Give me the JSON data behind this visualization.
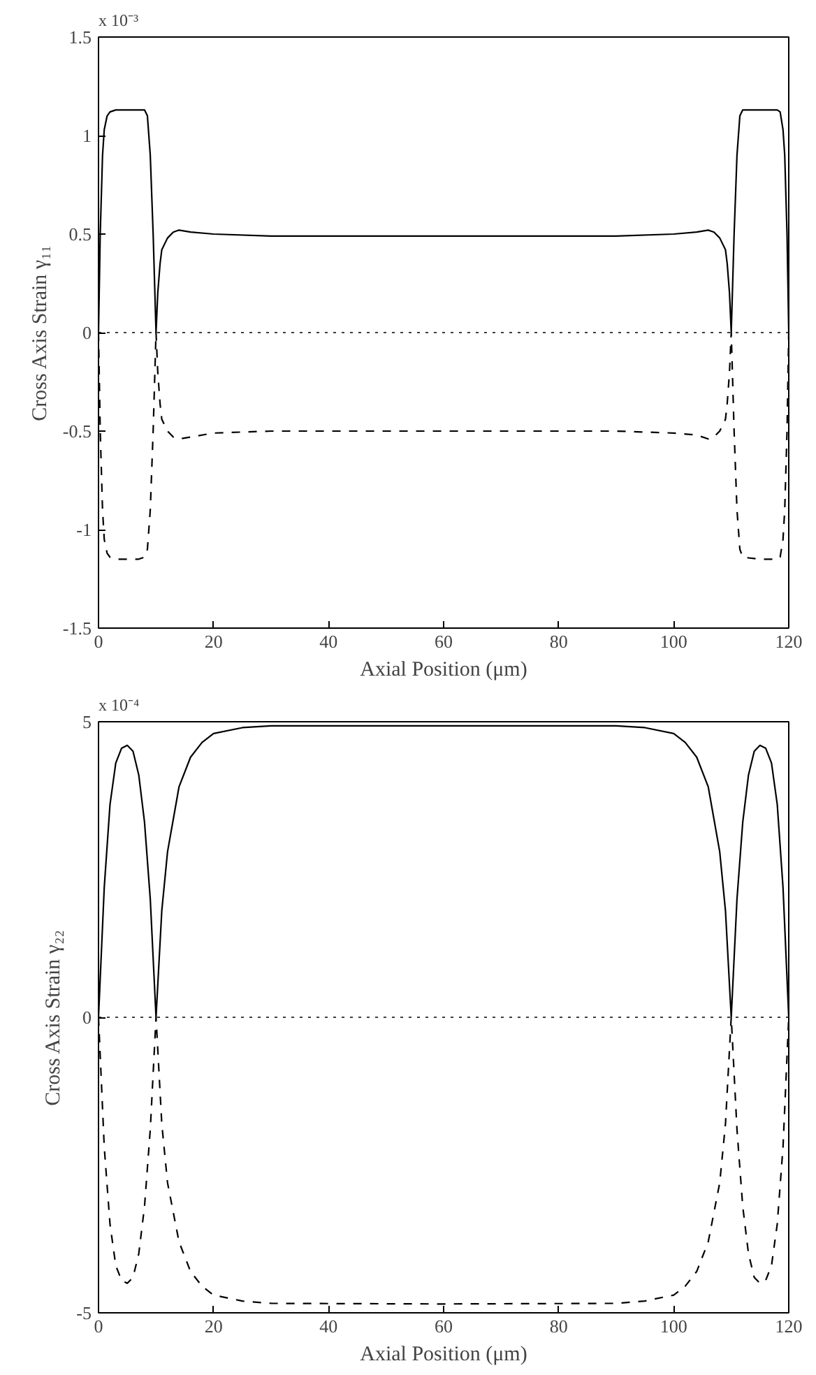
{
  "chart_data": [
    {
      "type": "line",
      "xlabel": "Axial Position (μm)",
      "ylabel": "Cross Axis Strain γ₁₁",
      "annotations": [
        "x 10⁻³"
      ],
      "xlim": [
        0,
        120
      ],
      "ylim": [
        -1.5,
        1.5
      ],
      "xticks": [
        0,
        20,
        40,
        60,
        80,
        100,
        120
      ],
      "yticks": [
        -1.5,
        -1,
        -0.5,
        0,
        0.5,
        1,
        1.5
      ],
      "grid": false,
      "ref_lines": [
        {
          "axis": "y",
          "value": 0,
          "color": "#000000",
          "line_style": "dotted"
        }
      ],
      "series": [
        {
          "color": "#000000",
          "line_style": "solid",
          "x": [
            0,
            0.3,
            0.7,
            1,
            1.5,
            2,
            3,
            5,
            7,
            8,
            8.5,
            9,
            9.5,
            10,
            10.3,
            10.7,
            11,
            12,
            13,
            14,
            16,
            20,
            30,
            60,
            90,
            100,
            104,
            106,
            107,
            108,
            109,
            109.3,
            109.7,
            110,
            110.5,
            111,
            111.5,
            112,
            115,
            118,
            118.5,
            119,
            119.3,
            119.7,
            120
          ],
          "values": [
            0,
            0.5,
            0.9,
            1.03,
            1.1,
            1.12,
            1.13,
            1.13,
            1.13,
            1.13,
            1.1,
            0.9,
            0.5,
            0,
            0.2,
            0.35,
            0.42,
            0.48,
            0.51,
            0.52,
            0.51,
            0.5,
            0.49,
            0.49,
            0.49,
            0.5,
            0.51,
            0.52,
            0.51,
            0.48,
            0.42,
            0.35,
            0.2,
            0,
            0.5,
            0.9,
            1.1,
            1.13,
            1.13,
            1.13,
            1.12,
            1.03,
            0.9,
            0.5,
            0
          ]
        },
        {
          "color": "#000000",
          "line_style": "dashed",
          "x": [
            0,
            0.3,
            0.7,
            1,
            1.5,
            2,
            3,
            5,
            7,
            8,
            8.5,
            9,
            9.5,
            10,
            10.3,
            10.7,
            11,
            12,
            13,
            14,
            16,
            20,
            30,
            60,
            90,
            100,
            104,
            106,
            107,
            108,
            109,
            109.3,
            109.7,
            110,
            110.5,
            111,
            111.5,
            112,
            115,
            118,
            118.5,
            119,
            119.3,
            119.7,
            120
          ],
          "values": [
            0,
            -0.5,
            -0.9,
            -1.05,
            -1.12,
            -1.14,
            -1.15,
            -1.15,
            -1.15,
            -1.14,
            -1.1,
            -0.9,
            -0.5,
            0,
            -0.2,
            -0.36,
            -0.44,
            -0.5,
            -0.53,
            -0.54,
            -0.53,
            -0.51,
            -0.5,
            -0.5,
            -0.5,
            -0.51,
            -0.52,
            -0.54,
            -0.53,
            -0.5,
            -0.44,
            -0.36,
            -0.2,
            0,
            -0.5,
            -0.9,
            -1.1,
            -1.14,
            -1.15,
            -1.15,
            -1.14,
            -1.05,
            -0.9,
            -0.5,
            0
          ]
        }
      ]
    },
    {
      "type": "line",
      "xlabel": "Axial Position (μm)",
      "ylabel": "Cross Axis Strain γ₂₂",
      "annotations": [
        "x 10⁻⁴"
      ],
      "xlim": [
        0,
        120
      ],
      "ylim": [
        -5,
        5
      ],
      "xticks": [
        0,
        20,
        40,
        60,
        80,
        100,
        120
      ],
      "yticks": [
        -5,
        0,
        5
      ],
      "grid": false,
      "ref_lines": [
        {
          "axis": "y",
          "value": 0,
          "color": "#000000",
          "line_style": "dotted"
        }
      ],
      "series": [
        {
          "color": "#000000",
          "line_style": "solid",
          "x": [
            0,
            1,
            2,
            3,
            4,
            5,
            6,
            7,
            8,
            9,
            10,
            11,
            12,
            14,
            16,
            18,
            20,
            25,
            30,
            60,
            90,
            95,
            100,
            102,
            104,
            106,
            108,
            109,
            110,
            111,
            112,
            113,
            114,
            115,
            116,
            117,
            118,
            119,
            120
          ],
          "values": [
            0,
            2.2,
            3.6,
            4.3,
            4.55,
            4.6,
            4.5,
            4.1,
            3.3,
            2,
            0,
            1.8,
            2.8,
            3.9,
            4.4,
            4.65,
            4.8,
            4.9,
            4.93,
            4.93,
            4.93,
            4.9,
            4.8,
            4.65,
            4.4,
            3.9,
            2.8,
            1.8,
            0,
            2,
            3.3,
            4.1,
            4.5,
            4.6,
            4.55,
            4.3,
            3.6,
            2.2,
            0
          ]
        },
        {
          "color": "#000000",
          "line_style": "dashed",
          "x": [
            0,
            1,
            2,
            3,
            4,
            5,
            6,
            7,
            8,
            9,
            10,
            11,
            12,
            14,
            16,
            18,
            20,
            25,
            30,
            60,
            90,
            95,
            100,
            102,
            104,
            106,
            108,
            109,
            110,
            111,
            112,
            113,
            114,
            115,
            116,
            117,
            118,
            119,
            120
          ],
          "values": [
            0,
            -2.2,
            -3.5,
            -4.2,
            -4.45,
            -4.5,
            -4.4,
            -4,
            -3.2,
            -1.9,
            0,
            -1.8,
            -2.8,
            -3.8,
            -4.3,
            -4.55,
            -4.7,
            -4.8,
            -4.84,
            -4.85,
            -4.84,
            -4.8,
            -4.7,
            -4.55,
            -4.3,
            -3.8,
            -2.8,
            -1.8,
            0,
            -1.9,
            -3.2,
            -4,
            -4.4,
            -4.5,
            -4.45,
            -4.2,
            -3.5,
            -2.2,
            0
          ]
        }
      ]
    }
  ]
}
